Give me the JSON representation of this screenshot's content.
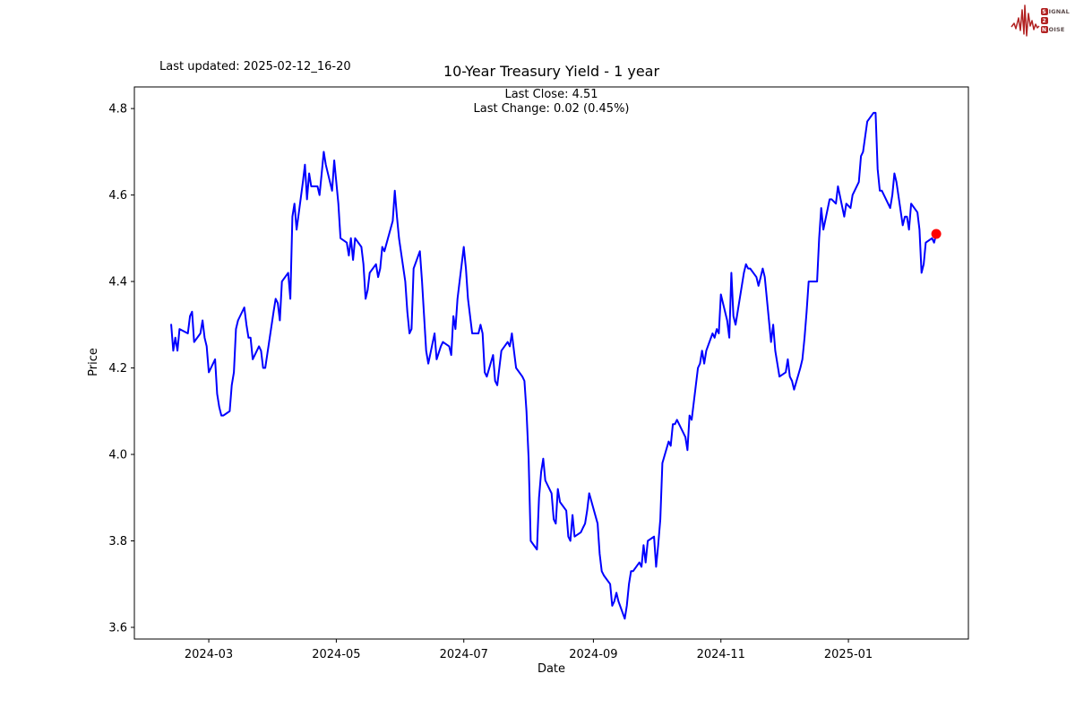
{
  "header": {
    "last_updated": "Last updated: 2025-02-12_16-20"
  },
  "logo": {
    "s": "S",
    "ignal": "IGNAL",
    "two": "2",
    "n": "N",
    "oise": "OISE",
    "color": "#b22222"
  },
  "chart_data": {
    "type": "line",
    "title": "10-Year Treasury Yield - 1 year",
    "subtitle_line1": "Last Close: 4.51",
    "subtitle_line2": "Last Change: 0.02 (0.45%)",
    "xlabel": "Date",
    "ylabel": "Price",
    "series_name": "10-Year Treasury Yield",
    "line_color": "#0000ff",
    "marker_color": "#ff0000",
    "axis_color": "#000000",
    "grid": false,
    "legend": false,
    "last_close": 4.51,
    "last_change": 0.02,
    "last_change_pct": "0.45%",
    "x_epoch": "2024-02-12",
    "x_domain_days": [
      -17.6,
      381.4
    ],
    "y_domain": [
      3.573,
      4.85
    ],
    "x_tick_labels": [
      "2024-03",
      "2024-05",
      "2024-07",
      "2024-09",
      "2024-11",
      "2025-01"
    ],
    "x_tick_days": [
      18,
      79,
      140,
      202,
      263,
      324
    ],
    "y_tick_labels": [
      "3.6",
      "3.8",
      "4.0",
      "4.2",
      "4.4",
      "4.6",
      "4.8"
    ],
    "y_tick_values": [
      3.6,
      3.8,
      4.0,
      4.2,
      4.4,
      4.6,
      4.8
    ],
    "points": [
      [
        0,
        4.3
      ],
      [
        1,
        4.24
      ],
      [
        2,
        4.27
      ],
      [
        3,
        4.24
      ],
      [
        4,
        4.29
      ],
      [
        8,
        4.28
      ],
      [
        9,
        4.32
      ],
      [
        10,
        4.33
      ],
      [
        11,
        4.26
      ],
      [
        14,
        4.28
      ],
      [
        15,
        4.31
      ],
      [
        16,
        4.27
      ],
      [
        17,
        4.25
      ],
      [
        18,
        4.19
      ],
      [
        21,
        4.22
      ],
      [
        22,
        4.14
      ],
      [
        23,
        4.11
      ],
      [
        24,
        4.09
      ],
      [
        25,
        4.09
      ],
      [
        28,
        4.1
      ],
      [
        29,
        4.16
      ],
      [
        30,
        4.19
      ],
      [
        31,
        4.29
      ],
      [
        32,
        4.31
      ],
      [
        35,
        4.34
      ],
      [
        36,
        4.3
      ],
      [
        37,
        4.27
      ],
      [
        38,
        4.27
      ],
      [
        39,
        4.22
      ],
      [
        42,
        4.25
      ],
      [
        43,
        4.24
      ],
      [
        44,
        4.2
      ],
      [
        45,
        4.2
      ],
      [
        49,
        4.33
      ],
      [
        50,
        4.36
      ],
      [
        51,
        4.35
      ],
      [
        52,
        4.31
      ],
      [
        53,
        4.4
      ],
      [
        56,
        4.42
      ],
      [
        57,
        4.36
      ],
      [
        58,
        4.55
      ],
      [
        59,
        4.58
      ],
      [
        60,
        4.52
      ],
      [
        63,
        4.63
      ],
      [
        64,
        4.67
      ],
      [
        65,
        4.59
      ],
      [
        66,
        4.65
      ],
      [
        67,
        4.62
      ],
      [
        70,
        4.62
      ],
      [
        71,
        4.6
      ],
      [
        72,
        4.65
      ],
      [
        73,
        4.7
      ],
      [
        74,
        4.67
      ],
      [
        77,
        4.61
      ],
      [
        78,
        4.68
      ],
      [
        79,
        4.63
      ],
      [
        80,
        4.58
      ],
      [
        81,
        4.5
      ],
      [
        84,
        4.49
      ],
      [
        85,
        4.46
      ],
      [
        86,
        4.5
      ],
      [
        87,
        4.45
      ],
      [
        88,
        4.5
      ],
      [
        91,
        4.48
      ],
      [
        92,
        4.44
      ],
      [
        93,
        4.36
      ],
      [
        94,
        4.38
      ],
      [
        95,
        4.42
      ],
      [
        98,
        4.44
      ],
      [
        99,
        4.41
      ],
      [
        100,
        4.43
      ],
      [
        101,
        4.48
      ],
      [
        102,
        4.47
      ],
      [
        106,
        4.54
      ],
      [
        107,
        4.61
      ],
      [
        108,
        4.55
      ],
      [
        109,
        4.5
      ],
      [
        112,
        4.4
      ],
      [
        113,
        4.33
      ],
      [
        114,
        4.28
      ],
      [
        115,
        4.29
      ],
      [
        116,
        4.43
      ],
      [
        119,
        4.47
      ],
      [
        120,
        4.4
      ],
      [
        121,
        4.32
      ],
      [
        122,
        4.24
      ],
      [
        123,
        4.21
      ],
      [
        126,
        4.28
      ],
      [
        127,
        4.22
      ],
      [
        129,
        4.25
      ],
      [
        130,
        4.26
      ],
      [
        133,
        4.25
      ],
      [
        134,
        4.23
      ],
      [
        135,
        4.32
      ],
      [
        136,
        4.29
      ],
      [
        137,
        4.36
      ],
      [
        140,
        4.48
      ],
      [
        141,
        4.43
      ],
      [
        142,
        4.36
      ],
      [
        144,
        4.28
      ],
      [
        147,
        4.28
      ],
      [
        148,
        4.3
      ],
      [
        149,
        4.28
      ],
      [
        150,
        4.19
      ],
      [
        151,
        4.18
      ],
      [
        154,
        4.23
      ],
      [
        155,
        4.17
      ],
      [
        156,
        4.16
      ],
      [
        157,
        4.2
      ],
      [
        158,
        4.24
      ],
      [
        161,
        4.26
      ],
      [
        162,
        4.25
      ],
      [
        163,
        4.28
      ],
      [
        164,
        4.24
      ],
      [
        165,
        4.2
      ],
      [
        168,
        4.18
      ],
      [
        169,
        4.17
      ],
      [
        170,
        4.1
      ],
      [
        171,
        3.99
      ],
      [
        172,
        3.8
      ],
      [
        175,
        3.78
      ],
      [
        176,
        3.9
      ],
      [
        177,
        3.96
      ],
      [
        178,
        3.99
      ],
      [
        179,
        3.94
      ],
      [
        182,
        3.91
      ],
      [
        183,
        3.85
      ],
      [
        184,
        3.84
      ],
      [
        185,
        3.92
      ],
      [
        186,
        3.89
      ],
      [
        189,
        3.87
      ],
      [
        190,
        3.81
      ],
      [
        191,
        3.8
      ],
      [
        192,
        3.86
      ],
      [
        193,
        3.81
      ],
      [
        196,
        3.82
      ],
      [
        197,
        3.83
      ],
      [
        198,
        3.84
      ],
      [
        199,
        3.87
      ],
      [
        200,
        3.91
      ],
      [
        204,
        3.84
      ],
      [
        205,
        3.77
      ],
      [
        206,
        3.73
      ],
      [
        207,
        3.72
      ],
      [
        210,
        3.7
      ],
      [
        211,
        3.65
      ],
      [
        212,
        3.66
      ],
      [
        213,
        3.68
      ],
      [
        214,
        3.66
      ],
      [
        217,
        3.62
      ],
      [
        218,
        3.65
      ],
      [
        219,
        3.7
      ],
      [
        220,
        3.73
      ],
      [
        221,
        3.73
      ],
      [
        224,
        3.75
      ],
      [
        225,
        3.74
      ],
      [
        226,
        3.79
      ],
      [
        227,
        3.75
      ],
      [
        228,
        3.8
      ],
      [
        231,
        3.81
      ],
      [
        232,
        3.74
      ],
      [
        233,
        3.79
      ],
      [
        234,
        3.85
      ],
      [
        235,
        3.98
      ],
      [
        238,
        4.03
      ],
      [
        239,
        4.02
      ],
      [
        240,
        4.07
      ],
      [
        241,
        4.07
      ],
      [
        242,
        4.08
      ],
      [
        246,
        4.04
      ],
      [
        247,
        4.01
      ],
      [
        248,
        4.09
      ],
      [
        249,
        4.08
      ],
      [
        252,
        4.2
      ],
      [
        253,
        4.21
      ],
      [
        254,
        4.24
      ],
      [
        255,
        4.21
      ],
      [
        256,
        4.24
      ],
      [
        259,
        4.28
      ],
      [
        260,
        4.27
      ],
      [
        261,
        4.29
      ],
      [
        262,
        4.28
      ],
      [
        263,
        4.37
      ],
      [
        266,
        4.31
      ],
      [
        267,
        4.27
      ],
      [
        268,
        4.42
      ],
      [
        269,
        4.32
      ],
      [
        270,
        4.3
      ],
      [
        274,
        4.42
      ],
      [
        275,
        4.44
      ],
      [
        276,
        4.43
      ],
      [
        277,
        4.43
      ],
      [
        280,
        4.41
      ],
      [
        281,
        4.39
      ],
      [
        282,
        4.41
      ],
      [
        283,
        4.43
      ],
      [
        284,
        4.41
      ],
      [
        287,
        4.26
      ],
      [
        288,
        4.3
      ],
      [
        289,
        4.24
      ],
      [
        291,
        4.18
      ],
      [
        294,
        4.19
      ],
      [
        295,
        4.22
      ],
      [
        296,
        4.18
      ],
      [
        297,
        4.17
      ],
      [
        298,
        4.15
      ],
      [
        301,
        4.2
      ],
      [
        302,
        4.22
      ],
      [
        303,
        4.27
      ],
      [
        304,
        4.33
      ],
      [
        305,
        4.4
      ],
      [
        308,
        4.4
      ],
      [
        309,
        4.4
      ],
      [
        310,
        4.5
      ],
      [
        311,
        4.57
      ],
      [
        312,
        4.52
      ],
      [
        315,
        4.59
      ],
      [
        316,
        4.59
      ],
      [
        318,
        4.58
      ],
      [
        319,
        4.62
      ],
      [
        322,
        4.55
      ],
      [
        323,
        4.58
      ],
      [
        325,
        4.57
      ],
      [
        326,
        4.6
      ],
      [
        329,
        4.63
      ],
      [
        330,
        4.69
      ],
      [
        331,
        4.7
      ],
      [
        333,
        4.77
      ],
      [
        336,
        4.79
      ],
      [
        337,
        4.79
      ],
      [
        338,
        4.66
      ],
      [
        339,
        4.61
      ],
      [
        340,
        4.61
      ],
      [
        344,
        4.57
      ],
      [
        345,
        4.6
      ],
      [
        346,
        4.65
      ],
      [
        347,
        4.63
      ],
      [
        350,
        4.53
      ],
      [
        351,
        4.55
      ],
      [
        352,
        4.55
      ],
      [
        353,
        4.52
      ],
      [
        354,
        4.58
      ],
      [
        357,
        4.56
      ],
      [
        358,
        4.52
      ],
      [
        359,
        4.42
      ],
      [
        360,
        4.44
      ],
      [
        361,
        4.49
      ],
      [
        364,
        4.5
      ],
      [
        365,
        4.49
      ],
      [
        366,
        4.51
      ]
    ]
  }
}
